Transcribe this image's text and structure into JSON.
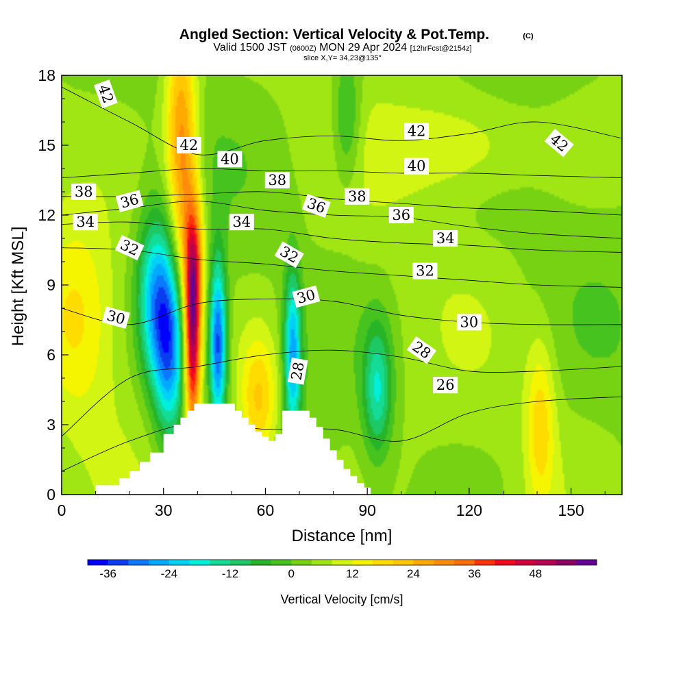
{
  "header": {
    "title": "Angled Section: Vertical Velocity & Pot.Temp.",
    "title_suffix": "(C)",
    "subtitle_a": "Valid 1500 JST",
    "subtitle_b": "(0600Z)",
    "subtitle_c": "MON 29 Apr 2024",
    "subtitle_d": "[12hrFcst@2154z]",
    "slice": "slice X,Y= 34,23@135°"
  },
  "chart_data": {
    "type": "heatmap",
    "title": "Angled Section: Vertical Velocity & Pot.Temp.",
    "xlabel": "Distance [nm]",
    "ylabel": "Height [Kft MSL]",
    "xlim": [
      0,
      165
    ],
    "ylim": [
      0,
      18
    ],
    "x_ticks": [
      0,
      30,
      60,
      90,
      120,
      150
    ],
    "x_tick_labels": [
      "0",
      "30",
      "60",
      "90",
      "120",
      "150"
    ],
    "y_ticks": [
      0,
      3,
      6,
      9,
      12,
      15,
      18
    ],
    "y_tick_labels": [
      "0",
      "3",
      "6",
      "9",
      "12",
      "15",
      "18"
    ],
    "colorbar": {
      "label": "Vertical Velocity [cm/s]",
      "levels": [
        -40,
        -36,
        -32,
        -28,
        -24,
        -20,
        -16,
        -12,
        -8,
        -4,
        0,
        4,
        8,
        12,
        16,
        20,
        24,
        28,
        32,
        36,
        40,
        44,
        48,
        52,
        56
      ],
      "colors": [
        "#0000ff",
        "#0a3cf0",
        "#0a78ff",
        "#00aaff",
        "#00d2f5",
        "#00f0dc",
        "#14dc96",
        "#1ec864",
        "#28b428",
        "#46c31e",
        "#78d214",
        "#a0e614",
        "#d2f514",
        "#f5f500",
        "#ffdc00",
        "#ffc800",
        "#ffaa00",
        "#ff8c0a",
        "#ff6e0a",
        "#ff320a",
        "#f00a1e",
        "#d2003c",
        "#b40050",
        "#8c0064",
        "#640096"
      ],
      "tick_values": [
        -36,
        -24,
        -12,
        0,
        12,
        24,
        36,
        48
      ],
      "tick_labels": [
        "-36",
        "-24",
        "-12",
        "0",
        "12",
        "24",
        "36",
        "48"
      ]
    },
    "field_features": [
      {
        "name": "updraft",
        "x": 38.5,
        "y": 6.5,
        "sx": 1.6,
        "sy": 2.8,
        "value": 44
      },
      {
        "name": "updraft",
        "x": 36,
        "y": 13,
        "sx": 3,
        "sy": 4.5,
        "value": 22
      },
      {
        "name": "updraft",
        "x": 34,
        "y": 16.5,
        "sx": 3,
        "sy": 2.5,
        "value": 10
      },
      {
        "name": "updraft",
        "x": 39,
        "y": 10,
        "sx": 2,
        "sy": 2,
        "value": 22
      },
      {
        "name": "downdraft",
        "x": 32,
        "y": 6.5,
        "sx": 3.5,
        "sy": 2.8,
        "value": -36
      },
      {
        "name": "downdraft",
        "x": 27,
        "y": 8.5,
        "sx": 3.5,
        "sy": 2.5,
        "value": -22
      },
      {
        "name": "downdraft",
        "x": 46,
        "y": 6.5,
        "sx": 1.8,
        "sy": 2.5,
        "value": -38
      },
      {
        "name": "downdraft",
        "x": 68,
        "y": 6,
        "sx": 1.8,
        "sy": 2.5,
        "value": -30
      },
      {
        "name": "downdraft",
        "x": 93,
        "y": 4.5,
        "sx": 3,
        "sy": 2,
        "value": -20
      },
      {
        "name": "updraft",
        "x": 141,
        "y": 3,
        "sx": 3,
        "sy": 2.5,
        "value": 14
      },
      {
        "name": "updraft",
        "x": 58,
        "y": 4,
        "sx": 4,
        "sy": 2,
        "value": 18
      },
      {
        "name": "updraft",
        "x": 5,
        "y": 7.5,
        "sx": 8,
        "sy": 3,
        "value": 12
      },
      {
        "name": "updraft",
        "x": 118,
        "y": 15,
        "sx": 15,
        "sy": 1.5,
        "value": 9
      },
      {
        "name": "downdraft",
        "x": 84,
        "y": 16,
        "sx": 3,
        "sy": 2,
        "value": -12
      }
    ],
    "terrain_profile": {
      "x": [
        0,
        10,
        17,
        20,
        23,
        26,
        30,
        33,
        35,
        37,
        39,
        41,
        43,
        45,
        47,
        49,
        51,
        53,
        55,
        57,
        59,
        61,
        63,
        65,
        67,
        69,
        71,
        73,
        75,
        77,
        79,
        81,
        83,
        85,
        87,
        89,
        91
      ],
      "height_kft": [
        0,
        0.4,
        0.7,
        1.0,
        1.4,
        1.8,
        2.6,
        3.0,
        3.3,
        3.6,
        3.9,
        3.9,
        3.9,
        3.9,
        3.9,
        3.9,
        3.6,
        3.3,
        3.0,
        2.7,
        2.5,
        2.3,
        2.6,
        3.6,
        3.6,
        3.6,
        3.6,
        3.3,
        2.9,
        2.4,
        1.9,
        1.5,
        1.1,
        0.8,
        0.5,
        0.3,
        0
      ]
    },
    "theta_contours": {
      "units": "C",
      "levels": [
        42,
        40,
        38,
        36,
        34,
        32,
        30,
        28,
        26
      ],
      "heights_at_x": {
        "x": [
          0,
          20,
          40,
          60,
          80,
          100,
          120,
          140,
          165
        ],
        "42": [
          17.5,
          16.0,
          14.6,
          15.2,
          15.4,
          15.2,
          15.5,
          16.0,
          15.3
        ],
        "40": [
          13.6,
          13.8,
          14.0,
          13.9,
          13.9,
          13.8,
          13.8,
          13.7,
          13.6
        ],
        "38": [
          12.8,
          12.8,
          12.9,
          13.0,
          12.7,
          12.5,
          12.3,
          12.2,
          12.0
        ],
        "36": [
          12.0,
          12.3,
          12.6,
          12.2,
          12.0,
          11.9,
          11.5,
          11.2,
          11.0
        ],
        "34": [
          11.6,
          11.7,
          11.4,
          11.4,
          11.0,
          10.8,
          10.7,
          10.5,
          10.4
        ],
        "32": [
          10.6,
          10.5,
          10.1,
          9.9,
          9.6,
          9.4,
          9.2,
          9.0,
          8.9
        ],
        "30": [
          8.0,
          7.3,
          8.2,
          8.4,
          8.3,
          7.7,
          7.4,
          7.3,
          7.3
        ],
        "28": [
          2.5,
          5.0,
          5.5,
          6.0,
          6.2,
          5.9,
          5.3,
          5.3,
          5.5
        ],
        "26": [
          1.0,
          2.3,
          3.1,
          2.8,
          2.8,
          2.3,
          3.5,
          4.0,
          4.2
        ]
      }
    },
    "contour_labels": [
      {
        "text": "42",
        "x": 13,
        "y": 17.2,
        "rotate": 70
      },
      {
        "text": "42",
        "x": 37.5,
        "y": 15.0,
        "rotate": 0
      },
      {
        "text": "40",
        "x": 49.5,
        "y": 14.4,
        "rotate": 0
      },
      {
        "text": "38",
        "x": 6.5,
        "y": 13.0,
        "rotate": 0
      },
      {
        "text": "38",
        "x": 63.5,
        "y": 13.5,
        "rotate": 0
      },
      {
        "text": "36",
        "x": 20,
        "y": 12.6,
        "rotate": -15
      },
      {
        "text": "34",
        "x": 7,
        "y": 11.7,
        "rotate": 0
      },
      {
        "text": "34",
        "x": 53,
        "y": 11.7,
        "rotate": 0
      },
      {
        "text": "32",
        "x": 20,
        "y": 10.6,
        "rotate": 25
      },
      {
        "text": "32",
        "x": 67,
        "y": 10.3,
        "rotate": 30
      },
      {
        "text": "30",
        "x": 16,
        "y": 7.6,
        "rotate": 15
      },
      {
        "text": "30",
        "x": 72,
        "y": 8.5,
        "rotate": -15
      },
      {
        "text": "28",
        "x": 69.5,
        "y": 5.3,
        "rotate": -80
      },
      {
        "text": "42",
        "x": 104.5,
        "y": 15.6,
        "rotate": 0
      },
      {
        "text": "42",
        "x": 146.5,
        "y": 15.1,
        "rotate": 40
      },
      {
        "text": "40",
        "x": 104.5,
        "y": 14.1,
        "rotate": 0
      },
      {
        "text": "38",
        "x": 87,
        "y": 12.8,
        "rotate": 0
      },
      {
        "text": "36",
        "x": 75,
        "y": 12.4,
        "rotate": 20
      },
      {
        "text": "36",
        "x": 100,
        "y": 12.0,
        "rotate": 0
      },
      {
        "text": "34",
        "x": 113,
        "y": 11.0,
        "rotate": 0
      },
      {
        "text": "32",
        "x": 107,
        "y": 9.6,
        "rotate": 0
      },
      {
        "text": "30",
        "x": 120,
        "y": 7.4,
        "rotate": 0
      },
      {
        "text": "28",
        "x": 106,
        "y": 6.2,
        "rotate": 35
      },
      {
        "text": "26",
        "x": 113,
        "y": 4.7,
        "rotate": 0
      }
    ]
  }
}
